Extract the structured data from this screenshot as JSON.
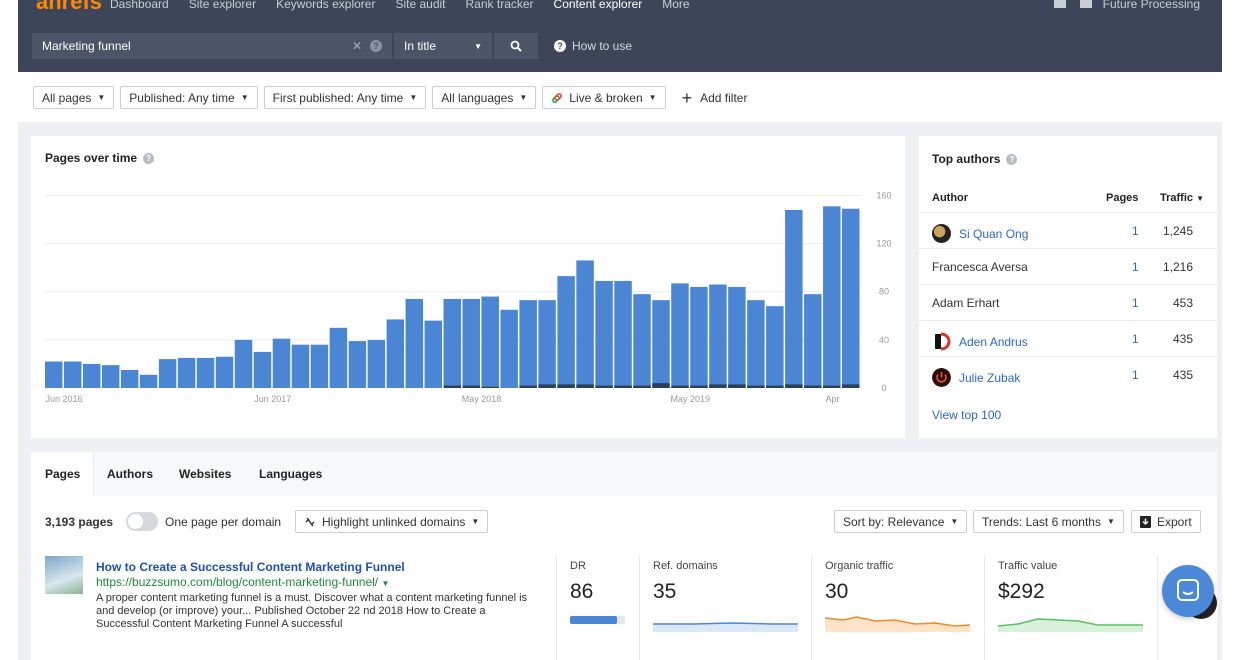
{
  "topnav": {
    "logo": "ahrefs",
    "links": [
      "Dashboard",
      "Site explorer",
      "Keywords explorer",
      "Site audit",
      "Rank tracker",
      "Content explorer",
      "More"
    ],
    "user": "Future Processing"
  },
  "search": {
    "value": "Marketing funnel",
    "mode": "In title",
    "how_to": "How to use"
  },
  "filters": {
    "all_pages": "All pages",
    "published": "Published: Any time",
    "first_published": "First published: Any time",
    "languages": "All languages",
    "live": "Live & broken",
    "add_filter": "Add filter"
  },
  "pages_over_time": {
    "title": "Pages over time"
  },
  "chart_data": {
    "type": "bar",
    "title": "Pages over time",
    "x_ticks": [
      "Jun 2016",
      "Jun 2017",
      "May 2018",
      "May 2019",
      "Apr"
    ],
    "y_ticks": [
      0,
      40,
      80,
      120,
      160
    ],
    "ylim": [
      0,
      160
    ],
    "series": [
      {
        "values": [
          22,
          22,
          20,
          19,
          15,
          11,
          24,
          25,
          25,
          26,
          40,
          30,
          41,
          36,
          36,
          50,
          39,
          40,
          57,
          74,
          56,
          74,
          74,
          76,
          65,
          73,
          73,
          93,
          106,
          89,
          89,
          78,
          73,
          87,
          84,
          86,
          84,
          73,
          68,
          148,
          78,
          151,
          149
        ]
      },
      {
        "values": [
          0,
          0,
          0,
          0,
          0,
          0,
          0,
          0,
          0,
          0,
          0,
          0,
          0,
          0,
          0,
          0,
          0,
          0,
          0,
          0,
          0,
          2,
          2,
          1,
          0,
          2,
          3,
          3,
          3,
          2,
          2,
          2,
          4,
          2,
          2,
          3,
          3,
          2,
          2,
          3,
          2,
          2,
          3
        ]
      }
    ]
  },
  "top_authors": {
    "title": "Top authors",
    "col_author": "Author",
    "col_pages": "Pages",
    "col_traffic": "Traffic",
    "rows": [
      {
        "name": "Si Quan Ong",
        "pages": "1",
        "traffic": "1,245"
      },
      {
        "name": "Francesca Aversa",
        "pages": "1",
        "traffic": "1,216"
      },
      {
        "name": "Adam Erhart",
        "pages": "1",
        "traffic": "453"
      },
      {
        "name": "Aden Andrus",
        "pages": "1",
        "traffic": "435"
      },
      {
        "name": "Julie Zubak",
        "pages": "1",
        "traffic": "435"
      }
    ],
    "view_top": "View top 100"
  },
  "results": {
    "tabs": [
      "Pages",
      "Authors",
      "Websites",
      "Languages"
    ],
    "count": "3,193 pages",
    "one_per_domain": "One page per domain",
    "highlight": "Highlight unlinked domains",
    "sort": "Sort by: Relevance",
    "trends": "Trends: Last 6 months",
    "export": "Export",
    "item": {
      "title": "How to Create a Successful Content Marketing Funnel",
      "url": "https://buzzsumo.com/blog/content-marketing-funnel/",
      "desc": "A proper content marketing funnel is a must. Discover what a content marketing funnel is and develop (or improve) your... Published October 22 nd 2018 How to Create a Successful Content Marketing Funnel A successful",
      "dr_label": "DR",
      "dr": "86",
      "ref_label": "Ref. domains",
      "ref": "35",
      "org_label": "Organic traffic",
      "org": "30",
      "val_label": "Traffic value",
      "val": "$292"
    }
  },
  "colors": {
    "nav_bg": "#3c4658",
    "bar": "#4a86d4",
    "bar_dark": "#2c3e5a",
    "link": "#2a69c7",
    "url_green": "#1c8a3b",
    "organic_orange": "#f08a24",
    "value_green": "#5bbf63"
  }
}
